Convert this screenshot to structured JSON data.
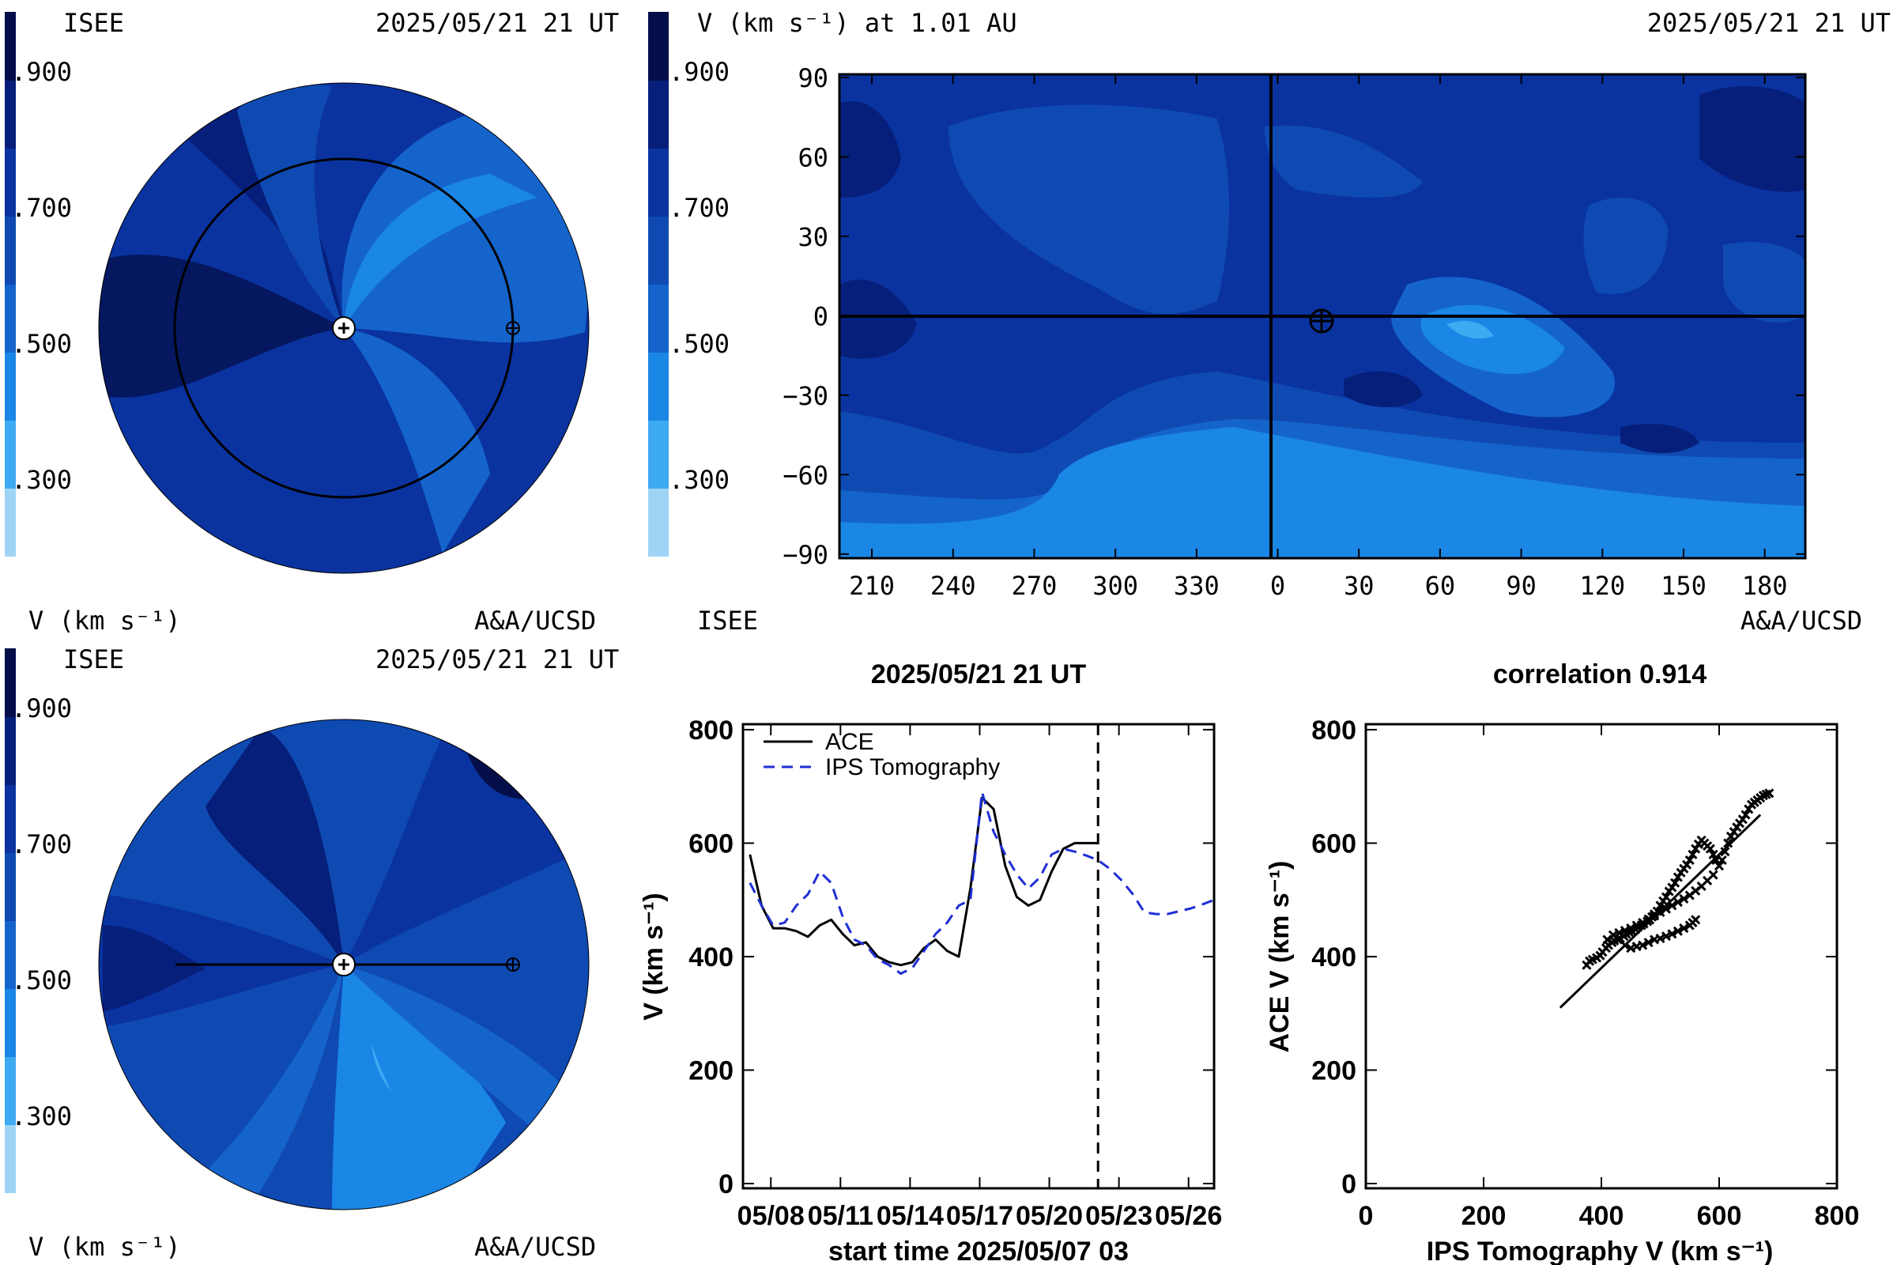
{
  "colors": {
    "levels": [
      "#9fd4f5",
      "#3eaaf2",
      "#1a86e6",
      "#1564cc",
      "#0f4ab3",
      "#0a33a0",
      "#061f7a",
      "#040f4a"
    ]
  },
  "panel_top_left": {
    "org": "ISEE",
    "datetime": "2025/05/21 21 UT",
    "unit_label": "V (km s⁻¹)",
    "credit": "A&A/UCSD",
    "scale_ticks": [
      ".900",
      ".700",
      ".500",
      ".300"
    ]
  },
  "panel_bottom_left": {
    "org": "ISEE",
    "datetime": "2025/05/21 21 UT",
    "unit_label": "V (km s⁻¹)",
    "credit": "A&A/UCSD",
    "scale_ticks": [
      ".900",
      ".700",
      ".500",
      ".300"
    ]
  },
  "panel_map": {
    "title": "V (km s⁻¹) at 1.01 AU",
    "datetime": "2025/05/21 21 UT",
    "org": "ISEE",
    "credit": "A&A/UCSD",
    "scale_ticks": [
      ".900",
      ".700",
      ".500",
      ".300"
    ],
    "y_ticks": [
      "90",
      "60",
      "30",
      "0",
      "−30",
      "−60",
      "−90"
    ],
    "x_ticks": [
      "210",
      "240",
      "270",
      "300",
      "330",
      "0",
      "30",
      "60",
      "90",
      "120",
      "150",
      "180"
    ]
  },
  "chart_data": [
    {
      "type": "line",
      "title": "2025/05/21 21 UT",
      "xlabel": "start time 2025/05/07 03",
      "ylabel": "V (km s⁻¹)",
      "ylim": [
        0,
        800
      ],
      "x_tick_labels": [
        "05/08",
        "05/11",
        "05/14",
        "05/17",
        "05/20",
        "05/23",
        "05/26"
      ],
      "y_tick_labels": [
        "0",
        "200",
        "400",
        "600",
        "800"
      ],
      "current_time_day": 15.0,
      "legend": "top-left",
      "series": [
        {
          "name": "ACE",
          "style": "solid",
          "color": "#000000",
          "x": [
            0.0,
            0.5,
            1.0,
            1.5,
            2.0,
            2.5,
            3.0,
            3.5,
            4.0,
            4.5,
            5.0,
            5.5,
            6.0,
            6.5,
            7.0,
            7.5,
            8.0,
            8.5,
            9.0,
            9.5,
            10.0,
            10.5,
            11.0,
            11.5,
            12.0,
            12.5,
            13.0,
            13.5,
            14.0,
            14.5,
            15.0
          ],
          "values": [
            580,
            490,
            450,
            450,
            445,
            435,
            455,
            465,
            440,
            420,
            425,
            400,
            390,
            385,
            390,
            415,
            430,
            410,
            400,
            520,
            680,
            660,
            560,
            505,
            490,
            500,
            550,
            590,
            600,
            600,
            600
          ]
        },
        {
          "name": "IPS Tomography",
          "style": "dashed",
          "color": "#1f2fd6",
          "x": [
            0.0,
            0.5,
            1.0,
            1.5,
            2.0,
            2.5,
            3.0,
            3.5,
            4.0,
            4.5,
            5.0,
            5.5,
            6.0,
            6.5,
            7.0,
            7.5,
            8.0,
            8.5,
            9.0,
            9.5,
            10.0,
            10.5,
            11.0,
            11.5,
            12.0,
            12.5,
            13.0,
            13.5,
            14.0,
            14.5,
            15.0,
            15.5,
            16.0,
            16.5,
            17.0,
            17.5,
            18.0,
            18.5,
            19.0,
            19.5,
            20.0
          ],
          "values": [
            530,
            490,
            455,
            460,
            490,
            510,
            550,
            530,
            470,
            430,
            420,
            395,
            385,
            370,
            380,
            410,
            440,
            460,
            490,
            500,
            690,
            620,
            580,
            545,
            520,
            540,
            580,
            590,
            585,
            578,
            570,
            555,
            535,
            510,
            478,
            475,
            475,
            480,
            485,
            492,
            500
          ]
        }
      ]
    },
    {
      "type": "scatter",
      "title": "correlation 0.914",
      "xlabel": "IPS Tomography V (km s⁻¹)",
      "ylabel": "ACE V (km s⁻¹)",
      "xlim": [
        0,
        800
      ],
      "ylim": [
        0,
        800
      ],
      "x_tick_labels": [
        "0",
        "200",
        "400",
        "600",
        "800"
      ],
      "y_tick_labels": [
        "0",
        "200",
        "400",
        "600",
        "800"
      ],
      "fit_line": [
        [
          330,
          310
        ],
        [
          670,
          650
        ]
      ],
      "points": [
        [
          375,
          385
        ],
        [
          380,
          392
        ],
        [
          385,
          395
        ],
        [
          392,
          398
        ],
        [
          398,
          402
        ],
        [
          402,
          408
        ],
        [
          408,
          415
        ],
        [
          412,
          420
        ],
        [
          418,
          425
        ],
        [
          422,
          428
        ],
        [
          428,
          430
        ],
        [
          432,
          432
        ],
        [
          438,
          436
        ],
        [
          442,
          440
        ],
        [
          448,
          442
        ],
        [
          452,
          445
        ],
        [
          458,
          448
        ],
        [
          462,
          452
        ],
        [
          468,
          455
        ],
        [
          472,
          458
        ],
        [
          478,
          462
        ],
        [
          482,
          465
        ],
        [
          486,
          470
        ],
        [
          490,
          475
        ],
        [
          495,
          480
        ],
        [
          500,
          490
        ],
        [
          505,
          498
        ],
        [
          510,
          505
        ],
        [
          515,
          515
        ],
        [
          520,
          522
        ],
        [
          525,
          530
        ],
        [
          530,
          540
        ],
        [
          535,
          548
        ],
        [
          540,
          555
        ],
        [
          545,
          562
        ],
        [
          550,
          570
        ],
        [
          555,
          580
        ],
        [
          560,
          590
        ],
        [
          565,
          598
        ],
        [
          570,
          605
        ],
        [
          575,
          600
        ],
        [
          580,
          595
        ],
        [
          585,
          590
        ],
        [
          590,
          580
        ],
        [
          595,
          570
        ],
        [
          600,
          560
        ],
        [
          605,
          570
        ],
        [
          610,
          585
        ],
        [
          615,
          600
        ],
        [
          620,
          612
        ],
        [
          625,
          620
        ],
        [
          630,
          628
        ],
        [
          635,
          635
        ],
        [
          640,
          642
        ],
        [
          645,
          650
        ],
        [
          650,
          660
        ],
        [
          655,
          668
        ],
        [
          660,
          672
        ],
        [
          665,
          676
        ],
        [
          670,
          680
        ],
        [
          675,
          684
        ],
        [
          680,
          686
        ],
        [
          685,
          688
        ],
        [
          440,
          420
        ],
        [
          450,
          415
        ],
        [
          460,
          418
        ],
        [
          470,
          420
        ],
        [
          480,
          425
        ],
        [
          490,
          430
        ],
        [
          500,
          432
        ],
        [
          510,
          436
        ],
        [
          520,
          440
        ],
        [
          530,
          445
        ],
        [
          540,
          450
        ],
        [
          550,
          455
        ],
        [
          555,
          460
        ],
        [
          560,
          465
        ],
        [
          410,
          430
        ],
        [
          420,
          438
        ],
        [
          430,
          442
        ],
        [
          440,
          446
        ],
        [
          450,
          450
        ],
        [
          460,
          455
        ],
        [
          470,
          460
        ],
        [
          480,
          466
        ],
        [
          490,
          472
        ],
        [
          500,
          478
        ],
        [
          510,
          484
        ],
        [
          520,
          490
        ],
        [
          530,
          496
        ],
        [
          540,
          502
        ],
        [
          550,
          508
        ],
        [
          560,
          516
        ],
        [
          570,
          524
        ],
        [
          580,
          534
        ],
        [
          590,
          544
        ]
      ]
    }
  ]
}
